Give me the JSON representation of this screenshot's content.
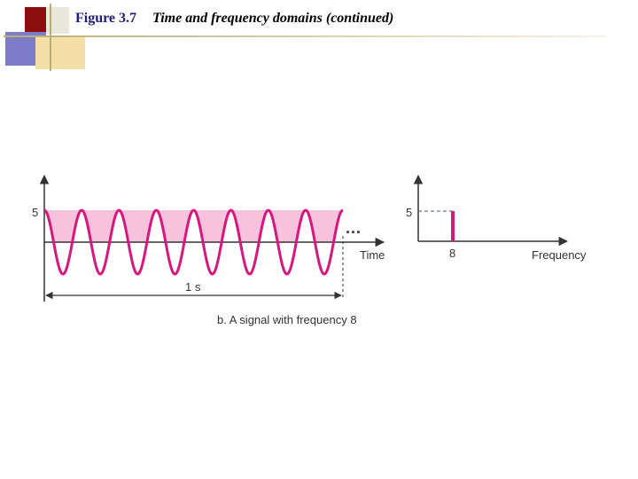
{
  "slide": {
    "figure_label": "Figure 3.7",
    "figure_caption": "Time and frequency domains (continued)"
  },
  "time_domain": {
    "y_tick_label": "5",
    "x_axis_label": "Time",
    "duration_label": "1 s",
    "ellipsis": "...",
    "frequency": 8,
    "peak": 5
  },
  "frequency_domain": {
    "y_tick_label": "5",
    "x_axis_label": "Frequency",
    "bar_label": "8",
    "bar_value": 5
  },
  "caption": "b. A signal with frequency 8",
  "colors": {
    "signal": "#d6177e",
    "signal_fill": "#f7c3dc",
    "axis": "#333333"
  }
}
